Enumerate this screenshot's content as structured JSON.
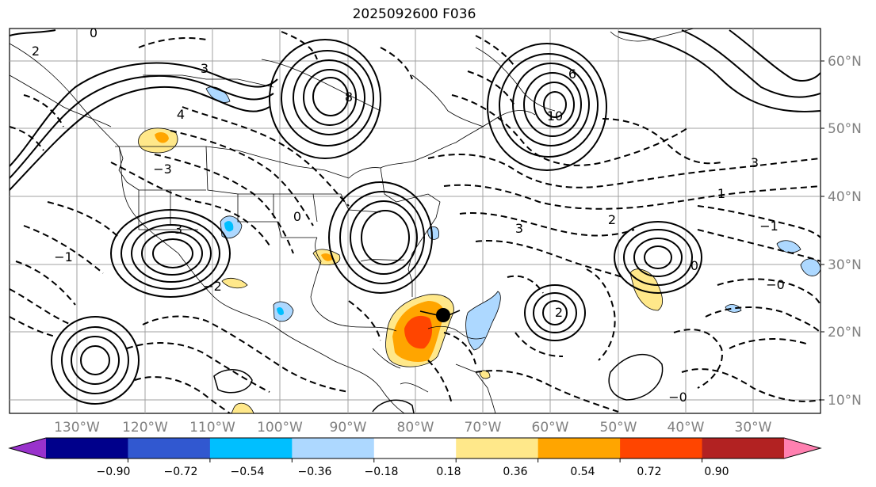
{
  "title": "2025092600 F036",
  "lat_labels": [
    "60°N",
    "50°N",
    "40°N",
    "30°N",
    "20°N",
    "10°N"
  ],
  "lon_labels": [
    "130°W",
    "120°W",
    "110°W",
    "100°W",
    "90°W",
    "80°W",
    "70°W",
    "60°W",
    "50°W",
    "40°W",
    "30°W"
  ],
  "colorbar": {
    "colors": [
      "#9932cc",
      "#00008b",
      "#3158d0",
      "#00bfff",
      "#add8ff",
      "#ffffff",
      "#ffe88a",
      "#ffa500",
      "#ff4500",
      "#b22222",
      "#ff80b0"
    ],
    "ticks": [
      "−0.90",
      "−0.72",
      "−0.54",
      "−0.36",
      "−0.18",
      "0.18",
      "0.36",
      "0.54",
      "0.72",
      "0.90"
    ]
  },
  "contour_labels": [
    "0",
    "2",
    "3",
    "4",
    "8",
    "10",
    "6",
    "3",
    "−3",
    "−1",
    "−2",
    "1",
    "−0",
    "2",
    "3",
    "2",
    "0",
    "3",
    "−0",
    "−1",
    "0"
  ]
}
